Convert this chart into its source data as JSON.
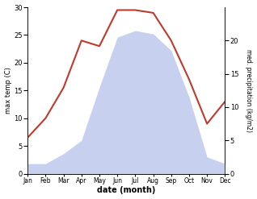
{
  "months": [
    "Jan",
    "Feb",
    "Mar",
    "Apr",
    "May",
    "Jun",
    "Jul",
    "Aug",
    "Sep",
    "Oct",
    "Nov",
    "Dec"
  ],
  "temp": [
    6.5,
    10.0,
    15.5,
    24.0,
    23.0,
    29.5,
    29.5,
    29.0,
    24.0,
    17.0,
    9.0,
    13.0
  ],
  "precip": [
    1.5,
    1.5,
    3.0,
    5.0,
    13.0,
    20.5,
    21.5,
    21.0,
    18.5,
    11.5,
    2.5,
    1.5
  ],
  "temp_ylim": [
    0,
    30
  ],
  "precip_ylim": [
    0,
    25
  ],
  "temp_color": "#c0392b",
  "fill_color": "#c8d0f0",
  "xlabel": "date (month)",
  "ylabel_left": "max temp (C)",
  "ylabel_right": "med. precipitation (kg/m2)",
  "bg_color": "#ffffff",
  "right_yticks": [
    0,
    5,
    10,
    15,
    20
  ],
  "left_yticks": [
    0,
    5,
    10,
    15,
    20,
    25,
    30
  ],
  "figsize": [
    3.18,
    2.47
  ],
  "dpi": 100
}
